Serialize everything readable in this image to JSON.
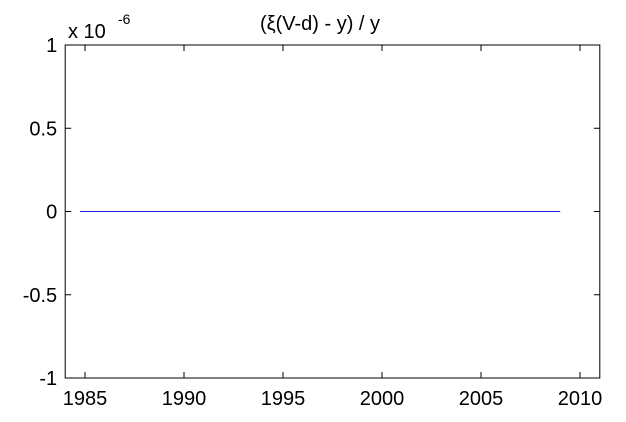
{
  "chart_data": {
    "type": "line",
    "title": "(ξ(V-d) - y) / y",
    "y_multiplier": "x 10",
    "y_multiplier_exponent": "-6",
    "x": [
      1984.75,
      2009
    ],
    "values": [
      0,
      0
    ],
    "color": "#1a1ae6",
    "xlim": [
      1984,
      2011
    ],
    "xticks": [
      1985,
      1990,
      1995,
      2000,
      2005,
      2010
    ],
    "ylim": [
      -1,
      1
    ],
    "yticks": [
      -1,
      -0.5,
      0,
      0.5,
      1
    ],
    "grid": false
  }
}
